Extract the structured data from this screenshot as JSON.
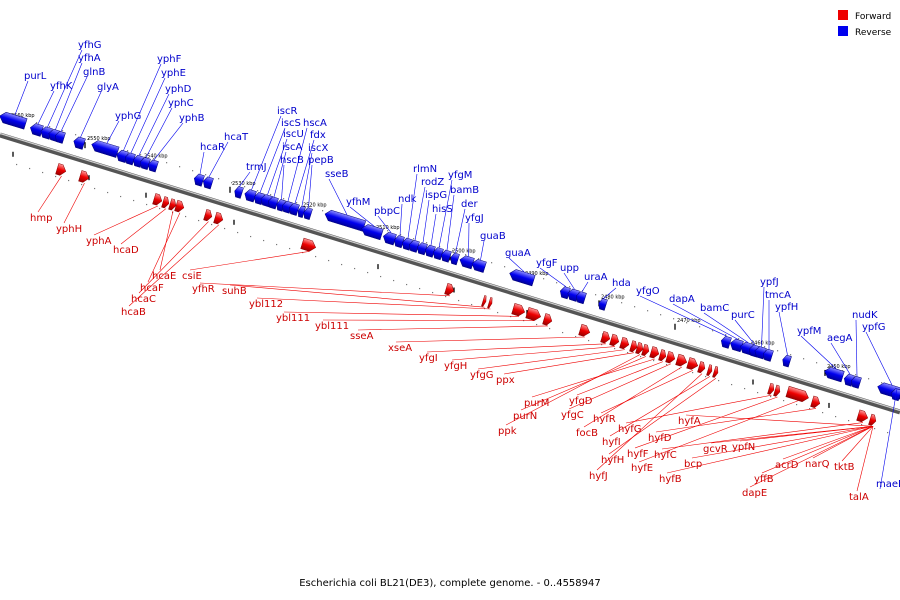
{
  "caption": "Escherichia coli BL21(DE3), complete genome. - 0..4558947",
  "colors": {
    "forward": "#ee0000",
    "reverse": "#0000ee",
    "forward_text": "#cc0000",
    "reverse_text": "#0000cc"
  },
  "legend": [
    {
      "label": "Forward",
      "color": "#ee0000"
    },
    {
      "label": "Reverse",
      "color": "#0000ee"
    }
  ],
  "ticks": [
    "2560 kbp",
    "2550 kbp",
    "2540 kbp",
    "2530 kbp",
    "2520 kbp",
    "2510 kbp",
    "2500 kbp",
    "2490 kbp",
    "2480 kbp",
    "2470 kbp",
    "2460 kbp",
    "2450 kbp"
  ],
  "reverse_genes": [
    "purL",
    "yfhK",
    "yfhG",
    "yfhA",
    "glnB",
    "glyA",
    "yphG",
    "yphF",
    "yphE",
    "yphD",
    "yphC",
    "yphB",
    "hcaR",
    "hcaT",
    "trmJ",
    "iscR",
    "iscS",
    "iscU",
    "iscA",
    "hscB",
    "hscA",
    "fdx",
    "iscX",
    "pepB",
    "sseB",
    "yfhM",
    "pbpC",
    "ndk",
    "rlmN",
    "rodZ",
    "ispG",
    "hisS",
    "yfgM",
    "bamB",
    "der",
    "yfgJ",
    "guaB",
    "guaA",
    "yfgF",
    "upp",
    "uraA",
    "hda",
    "yfgO",
    "dapA",
    "bamC",
    "purC",
    "ypfJ",
    "tmcA",
    "ypfH",
    "ypfM",
    "aegA",
    "nudK",
    "ypfG",
    "maeB"
  ],
  "forward_genes": [
    "hmp",
    "yphH",
    "yphA",
    "hcaD",
    "hcaE",
    "hcaF",
    "hcaC",
    "hcaB",
    "csiE",
    "yfhR",
    "suhB",
    "ybl112",
    "ybl111",
    "ybl111",
    "sseA",
    "xseA",
    "yfgI",
    "yfgH",
    "yfgG",
    "ppx",
    "ppk",
    "purN",
    "purM",
    "yfgD",
    "yfgC",
    "focB",
    "hyfR",
    "hyfJ",
    "hyfI",
    "hyfH",
    "hyfG",
    "hyfF",
    "hyfE",
    "hyfD",
    "hyfC",
    "hyfB",
    "hyfA",
    "bcp",
    "gcvR",
    "ypfN",
    "yffB",
    "dapE",
    "acrD",
    "narQ",
    "tktB",
    "talA"
  ]
}
